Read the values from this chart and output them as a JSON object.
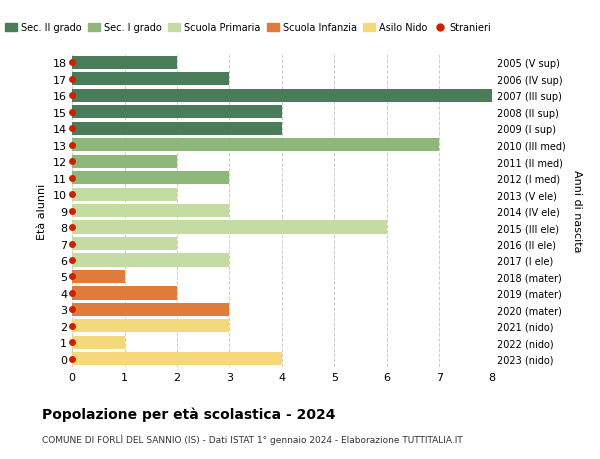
{
  "ages": [
    18,
    17,
    16,
    15,
    14,
    13,
    12,
    11,
    10,
    9,
    8,
    7,
    6,
    5,
    4,
    3,
    2,
    1,
    0
  ],
  "right_labels": [
    "2005 (V sup)",
    "2006 (IV sup)",
    "2007 (III sup)",
    "2008 (II sup)",
    "2009 (I sup)",
    "2010 (III med)",
    "2011 (II med)",
    "2012 (I med)",
    "2013 (V ele)",
    "2014 (IV ele)",
    "2015 (III ele)",
    "2016 (II ele)",
    "2017 (I ele)",
    "2018 (mater)",
    "2019 (mater)",
    "2020 (mater)",
    "2021 (nido)",
    "2022 (nido)",
    "2023 (nido)"
  ],
  "values": [
    2,
    3,
    8,
    4,
    4,
    7,
    2,
    3,
    2,
    3,
    6,
    2,
    3,
    1,
    2,
    3,
    3,
    1,
    4
  ],
  "colors": [
    "#4a7c59",
    "#4a7c59",
    "#4a7c59",
    "#4a7c59",
    "#4a7c59",
    "#8db87a",
    "#8db87a",
    "#8db87a",
    "#c5dba4",
    "#c5dba4",
    "#c5dba4",
    "#c5dba4",
    "#c5dba4",
    "#e07b39",
    "#e07b39",
    "#e07b39",
    "#f5d87a",
    "#f5d87a",
    "#f5d87a"
  ],
  "legend_labels": [
    "Sec. II grado",
    "Sec. I grado",
    "Scuola Primaria",
    "Scuola Infanzia",
    "Asilo Nido",
    "Stranieri"
  ],
  "legend_colors": [
    "#4a7c59",
    "#8db87a",
    "#c5dba4",
    "#e07b39",
    "#f5d87a",
    "#cc2200"
  ],
  "legend_markers": [
    "s",
    "s",
    "s",
    "s",
    "s",
    "o"
  ],
  "title": "Popolazione per età scolastica - 2024",
  "subtitle": "COMUNE DI FORLÌ DEL SANNIO (IS) - Dati ISTAT 1° gennaio 2024 - Elaborazione TUTTITALIA.IT",
  "ylabel": "Età alunni",
  "right_ylabel": "Anni di nascita",
  "xlim": [
    0,
    8
  ],
  "xticks": [
    0,
    1,
    2,
    3,
    4,
    5,
    6,
    7,
    8
  ],
  "bar_height": 0.8,
  "bg_color": "#ffffff",
  "grid_color": "#cccccc",
  "stranieri_color": "#cc2200",
  "stranieri_size": 4
}
